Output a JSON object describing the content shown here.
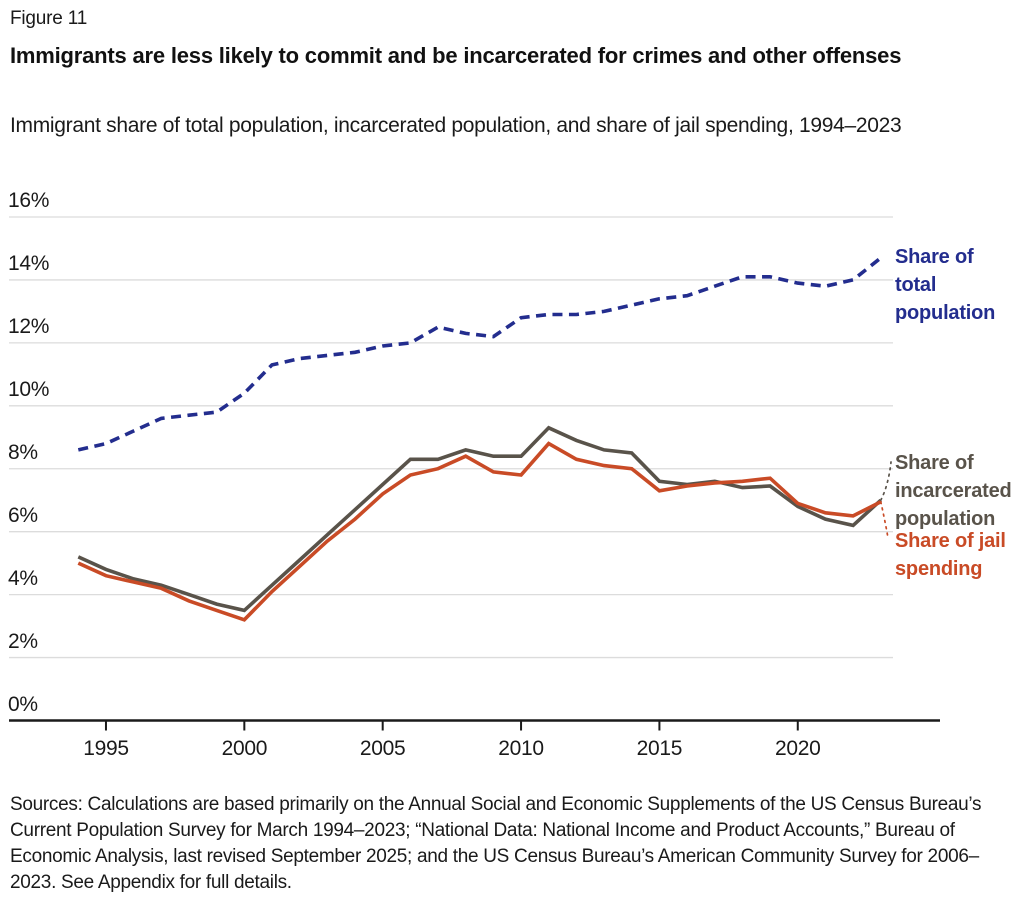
{
  "figure": {
    "label": "Figure 11",
    "title": "Immigrants are less likely to commit and be incarcerated for crimes and other offenses",
    "subtitle": "Immigrant share of total population, incarcerated population, and share of jail spending, 1994–2023",
    "sources": "Sources: Calculations are based primarily on the Annual Social and Economic Supplements of the US Census Bureau’s Current Population Survey for March 1994–2023; “National Data: National Income and Product Accounts,” Bureau of Economic Analysis, last revised September 2025; and the US Census Bureau’s American Community Survey for 2006–2023. See Appendix for full details."
  },
  "colors": {
    "total_population": "#232d8e",
    "incarcerated": "#59534a",
    "jail_spending": "#c94b26",
    "gridline": "#dcdcdc",
    "axis": "#1a1a1a",
    "text": "#1a1a1a",
    "background": "#ffffff"
  },
  "chart_data": {
    "type": "line",
    "title": "Immigrants are less likely to commit and be incarcerated for crimes and other offenses",
    "subtitle": "Immigrant share of total population, incarcerated population, and share of jail spending, 1994–2023",
    "xlabel": "",
    "ylabel": "",
    "grid": "horizontal",
    "legend_position": "right-edge-annotations",
    "xlim": [
      1994,
      2023
    ],
    "ylim": [
      0,
      16
    ],
    "x": [
      1994,
      1995,
      1996,
      1997,
      1998,
      1999,
      2000,
      2001,
      2002,
      2003,
      2004,
      2005,
      2006,
      2007,
      2008,
      2009,
      2010,
      2011,
      2012,
      2013,
      2014,
      2015,
      2016,
      2017,
      2018,
      2019,
      2020,
      2021,
      2022,
      2023
    ],
    "x_ticks": [
      1995,
      2000,
      2005,
      2010,
      2015,
      2020
    ],
    "y_ticks": [
      {
        "value": 16,
        "label": "16%"
      },
      {
        "value": 14,
        "label": "14%"
      },
      {
        "value": 12,
        "label": "12%"
      },
      {
        "value": 10,
        "label": "10%"
      },
      {
        "value": 8,
        "label": "8%"
      },
      {
        "value": 6,
        "label": "6%"
      },
      {
        "value": 4,
        "label": "4%"
      },
      {
        "value": 2,
        "label": "2%"
      },
      {
        "value": 0,
        "label": "0%"
      }
    ],
    "series": [
      {
        "name": "Share of total population",
        "key": "total_population",
        "color": "#232d8e",
        "line_style": "dashed",
        "values": [
          8.6,
          8.8,
          9.2,
          9.6,
          9.7,
          9.8,
          10.4,
          11.3,
          11.5,
          11.6,
          11.7,
          11.9,
          12.0,
          12.5,
          12.3,
          12.2,
          12.8,
          12.9,
          12.9,
          13.0,
          13.2,
          13.4,
          13.5,
          13.8,
          14.1,
          14.1,
          13.9,
          13.8,
          14.0,
          14.7
        ]
      },
      {
        "name": "Share of incarcerated population",
        "key": "incarcerated",
        "color": "#59534a",
        "line_style": "solid",
        "values": [
          5.2,
          4.8,
          4.5,
          4.3,
          4.0,
          3.7,
          3.5,
          4.3,
          5.1,
          5.9,
          6.7,
          7.5,
          8.3,
          8.3,
          8.6,
          8.4,
          8.4,
          9.3,
          8.9,
          8.6,
          8.5,
          7.6,
          7.5,
          7.6,
          7.4,
          7.45,
          6.8,
          6.4,
          6.2,
          7.0
        ]
      },
      {
        "name": "Share of jail spending",
        "key": "jail_spending",
        "color": "#c94b26",
        "line_style": "solid",
        "values": [
          5.0,
          4.6,
          4.4,
          4.2,
          3.8,
          3.5,
          3.2,
          4.1,
          4.9,
          5.7,
          6.4,
          7.2,
          7.8,
          8.0,
          8.4,
          7.9,
          7.8,
          8.8,
          8.3,
          8.1,
          8.0,
          7.3,
          7.45,
          7.55,
          7.6,
          7.7,
          6.9,
          6.6,
          6.5,
          6.95
        ]
      }
    ],
    "annotations": [
      {
        "series": "total_population",
        "text_lines": [
          "Share of",
          "total",
          "population"
        ]
      },
      {
        "series": "incarcerated",
        "text_lines": [
          "Share of",
          "incarcerated",
          "population"
        ]
      },
      {
        "series": "jail_spending",
        "text_lines": [
          "Share of jail",
          "spending"
        ]
      }
    ]
  }
}
